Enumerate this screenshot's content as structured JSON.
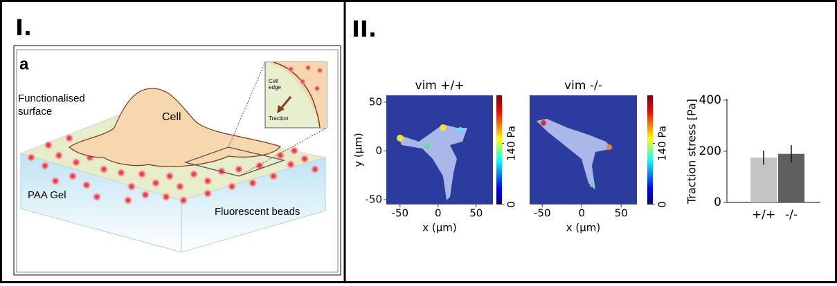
{
  "panel_labels": [
    "I.",
    "II."
  ],
  "diagram": {
    "sublabel": "a",
    "surface_label_lines": [
      "Functionalised",
      "surface"
    ],
    "cell_label": "Cell",
    "gel_label": "PAA Gel",
    "beads_label": "Fluorescent beads",
    "inset_edge_lines": [
      "Cell",
      "edge"
    ],
    "inset_traction": "Traction"
  },
  "heatmaps": [
    {
      "title": "vim +/+",
      "xlabel": "x (μm)",
      "ylabel": "y (μm)",
      "xlim": [
        -68,
        72
      ],
      "ylim": [
        -55,
        57
      ],
      "xticks": [
        -50,
        0,
        50
      ],
      "yticks": [
        -50,
        0,
        50
      ],
      "clim": [
        0,
        250
      ],
      "cticks": [
        0,
        {
          "value": 140,
          "label": "140 Pa"
        }
      ]
    },
    {
      "title": "vim -/-",
      "xlabel": "x (μm)",
      "xlim": [
        -66,
        70
      ],
      "ylim": [
        -55,
        57
      ],
      "xticks": [
        -50,
        0,
        50
      ],
      "clim": [
        0,
        250
      ],
      "cticks": [
        0,
        {
          "value": 140,
          "label": "140 Pa"
        }
      ]
    }
  ],
  "chart_data": {
    "type": "bar",
    "ylabel": "Traction stress [Pa]",
    "categories": [
      "+/+",
      "-/-"
    ],
    "series": [
      {
        "colors": [
          "#c4c4c4",
          "#5f5f5f"
        ],
        "values": [
          175,
          190
        ],
        "errors": [
          28,
          34
        ]
      }
    ],
    "ylim": [
      0,
      400
    ],
    "yticks": [
      0,
      200,
      400
    ]
  }
}
